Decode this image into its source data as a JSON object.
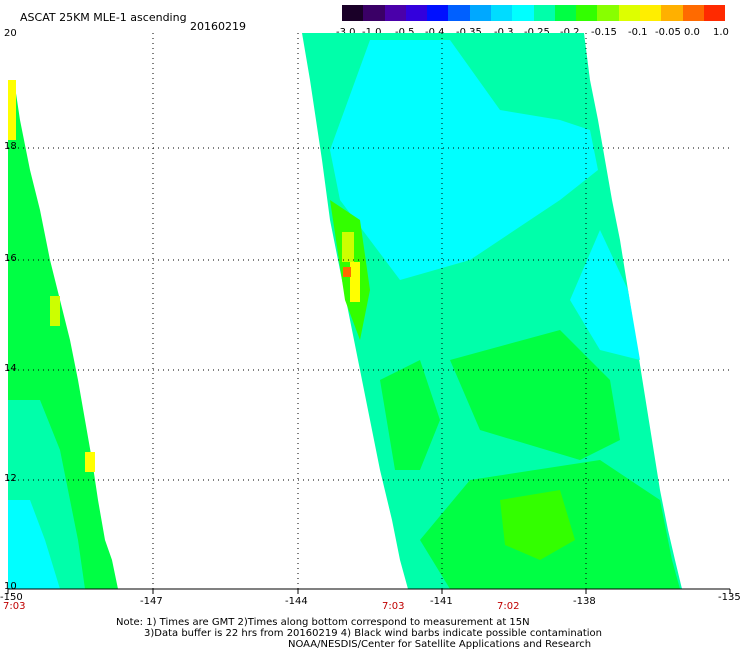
{
  "header": {
    "title": "ASCAT 25KM MLE-1 ascending",
    "date": "20160219"
  },
  "colorbar": {
    "colors": [
      "#1a0028",
      "#3a0066",
      "#4a00aa",
      "#3300dd",
      "#0010ff",
      "#0060ff",
      "#00a8ff",
      "#00dcff",
      "#00ffff",
      "#00ffaa",
      "#00ff44",
      "#33ff00",
      "#88ff00",
      "#ddff00",
      "#ffee00",
      "#ffb000",
      "#ff6a00",
      "#ff2a00"
    ],
    "ticks": [
      "-3.0",
      "-1.0",
      "-0.5",
      "-0.4",
      "-0.35",
      "-0.3",
      "-0.25",
      "-0.2",
      "-0.15",
      "-0.1",
      "-0.05",
      "0.0",
      "1.0"
    ]
  },
  "axes": {
    "y_ticks": [
      "20",
      "18",
      "16",
      "14",
      "12",
      "10"
    ],
    "x_ticks": [
      "-150",
      "-147",
      "-144",
      "-141",
      "-138",
      "-135"
    ],
    "times": [
      "7:03",
      "7:03",
      "7:02"
    ]
  },
  "note": {
    "line1": "Note: 1) Times are GMT 2)Times along bottom correspond to measurement at 15N",
    "line2": "3)Data buffer is 22 hrs from 20160219 4) Black wind barbs indicate possible contamination",
    "line3": "NOAA/NESDIS/Center for Satellite Applications and Research"
  },
  "map_colors": {
    "cyan": "#00ffff",
    "aqua_green": "#00ffaa",
    "green": "#00ff44",
    "bright_green": "#33ff00",
    "yellow_green": "#ccff00",
    "yellow": "#ffff00",
    "orange": "#ff6a00"
  }
}
